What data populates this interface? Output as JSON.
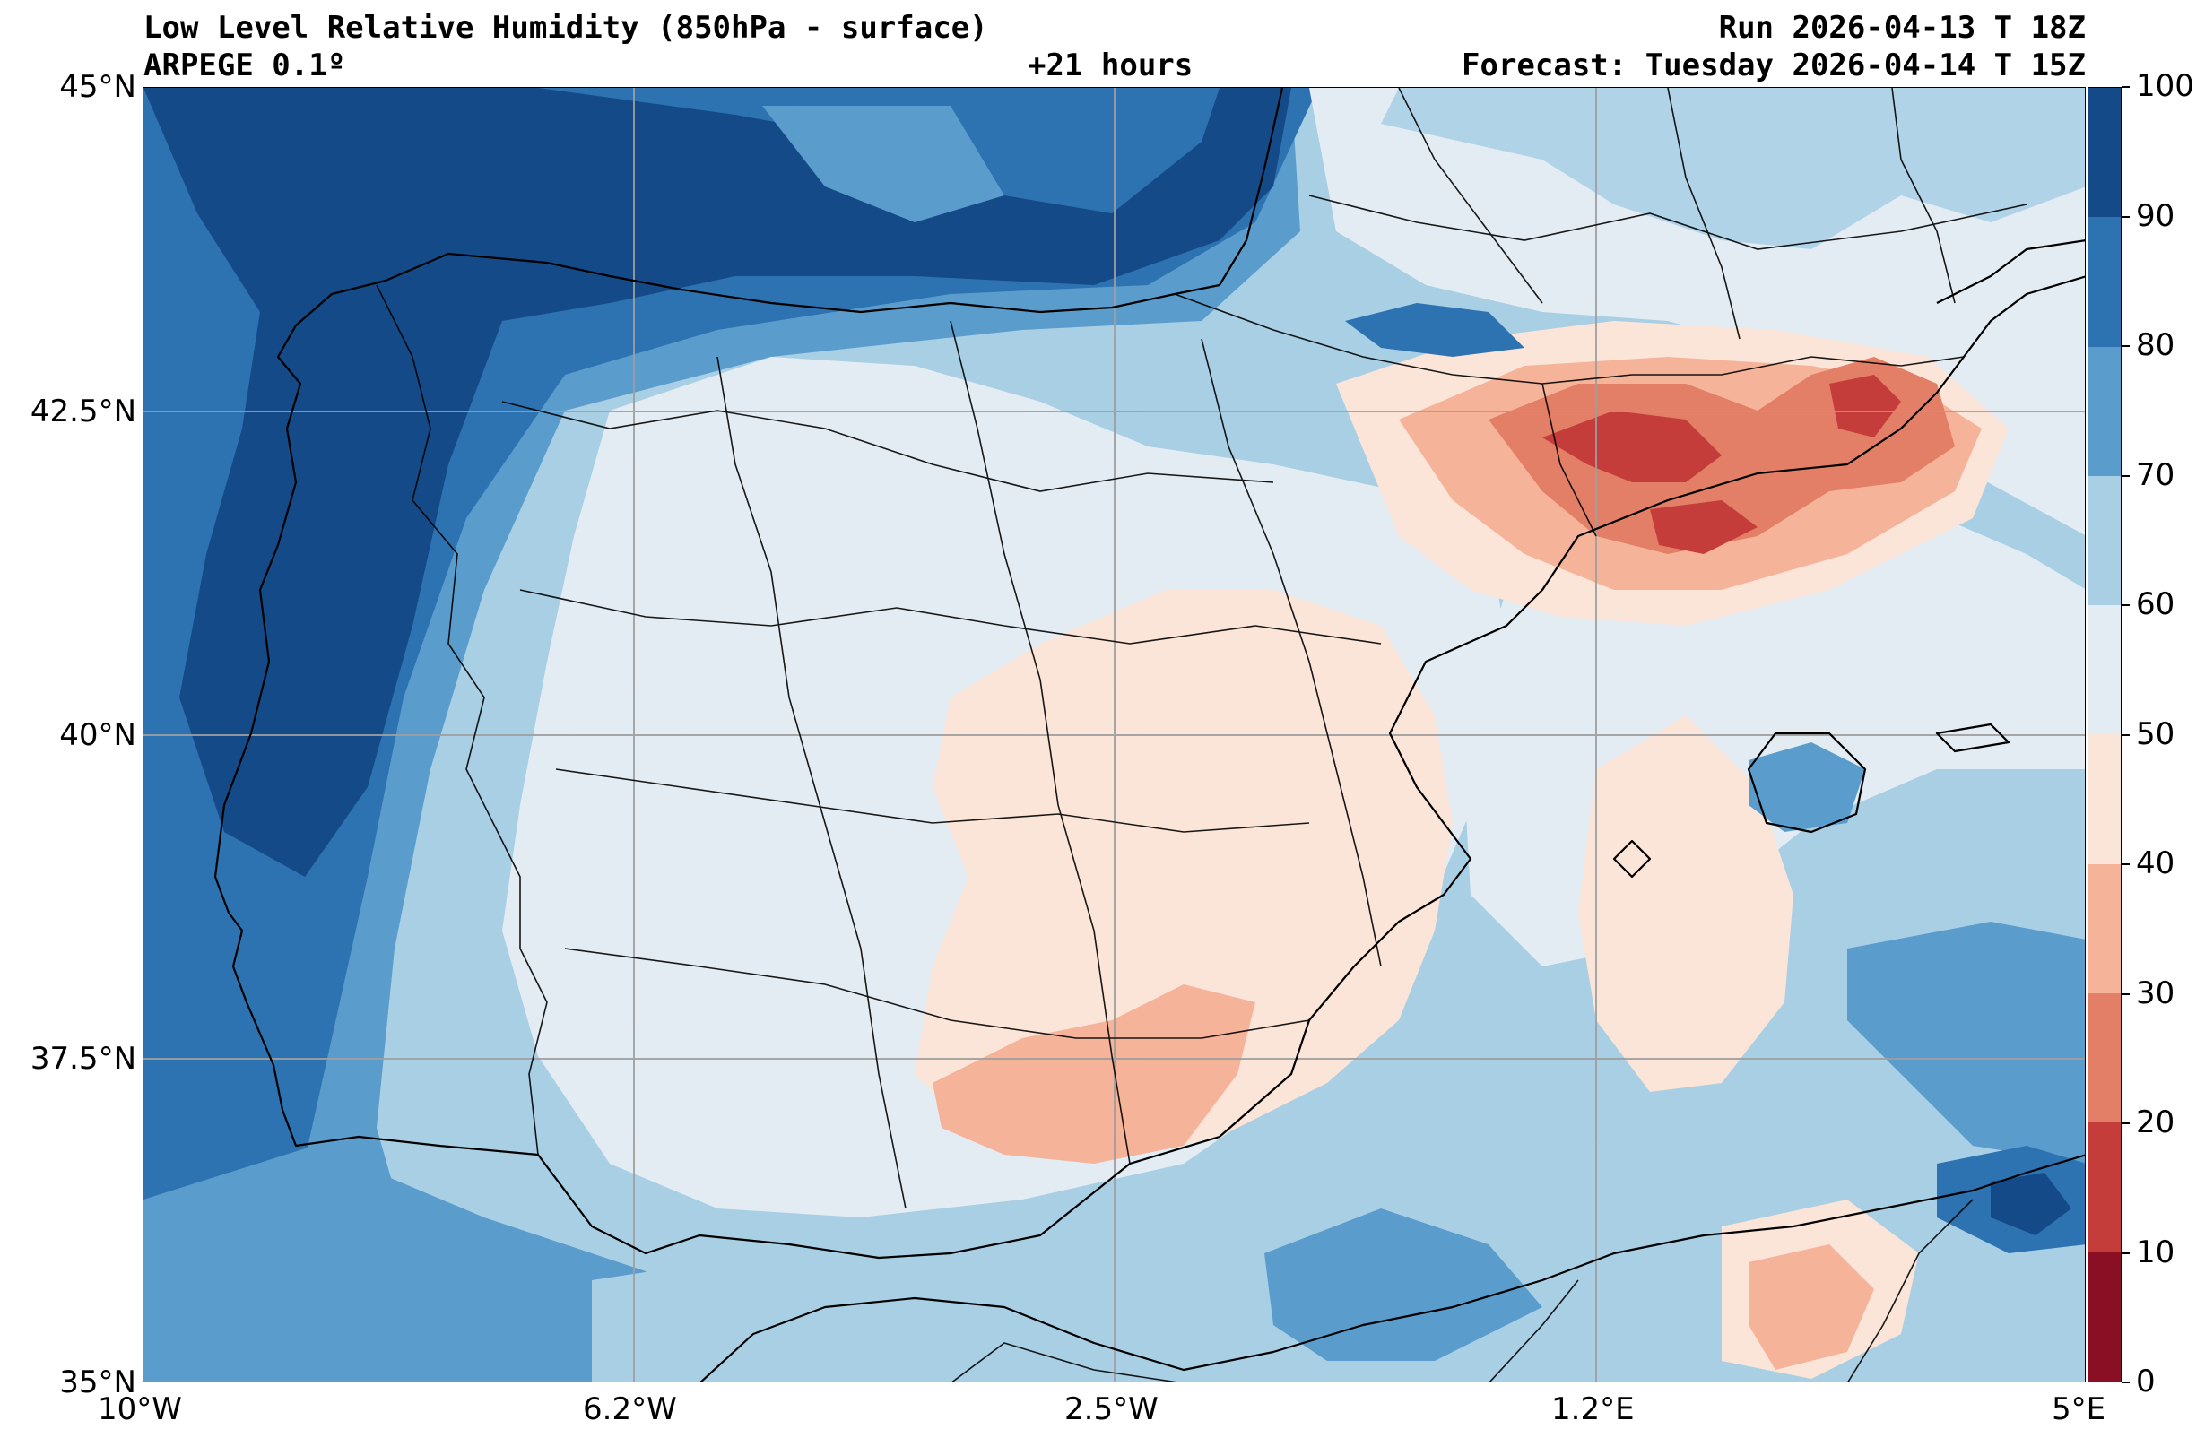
{
  "header": {
    "title": "Low Level Relative Humidity (850hPa - surface)",
    "model": "ARPEGE 0.1º",
    "lead": "+21 hours",
    "run": "Run 2026-04-13 T 18Z",
    "forecast": "Forecast: Tuesday 2026-04-14 T 15Z"
  },
  "axes": {
    "lat_labels": [
      "45°N",
      "42.5°N",
      "40°N",
      "37.5°N",
      "35°N"
    ],
    "lon_labels": [
      "10°W",
      "6.2°W",
      "2.5°W",
      "1.2°E",
      "5°E"
    ]
  },
  "colorbar": {
    "ticks": [
      "100",
      "90",
      "80",
      "70",
      "60",
      "50",
      "40",
      "30",
      "20",
      "10",
      "0"
    ],
    "colors_top_to_bottom": [
      "#154a88",
      "#2d72b1",
      "#5a9dcd",
      "#a8cfe4",
      "#e3ecf3",
      "#fbe4d8",
      "#f5b49a",
      "#e27f66",
      "#c43d3b",
      "#8a0f25"
    ]
  },
  "map": {
    "type": "filled-contour",
    "variable": "relative humidity",
    "units": "%",
    "levels": [
      0,
      10,
      20,
      30,
      40,
      50,
      60,
      70,
      80,
      90,
      100
    ],
    "extent": {
      "lon": [
        -10,
        5
      ],
      "lat": [
        35,
        45
      ]
    },
    "colormap": "RdBu"
  }
}
